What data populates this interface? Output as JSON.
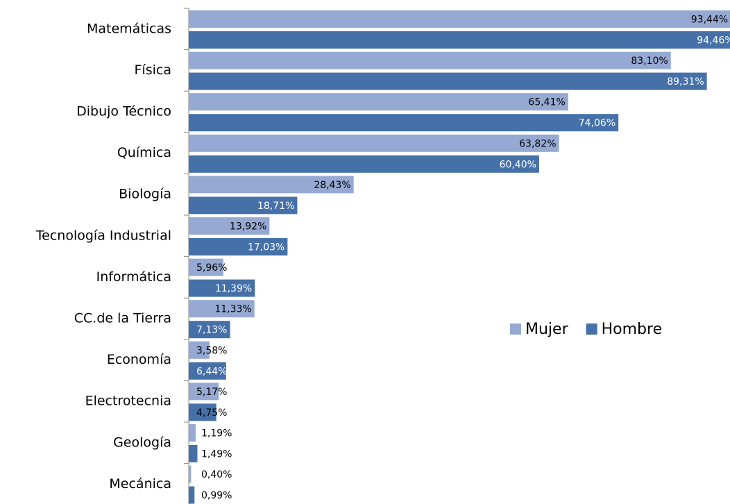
{
  "chart_data": {
    "type": "bar",
    "orientation": "horizontal",
    "categories": [
      "Matemáticas",
      "Física",
      "Dibujo Técnico",
      "Química",
      "Biología",
      "Tecnología Industrial",
      "Informática",
      "CC.de la Tierra",
      "Economía",
      "Electrotecnia",
      "Geología",
      "Mecánica"
    ],
    "series": [
      {
        "name": "Mujer",
        "color": "#95a9d3",
        "values": [
          93.44,
          83.1,
          65.41,
          63.82,
          28.43,
          13.92,
          5.96,
          11.33,
          3.58,
          5.17,
          1.19,
          0.4
        ],
        "value_labels": [
          "93,44%",
          "83,10%",
          "65,41%",
          "63,82%",
          "28,43%",
          "13,92%",
          "5,96%",
          "11,33%",
          "3,58%",
          "5,17%",
          "1,19%",
          "0,40%"
        ]
      },
      {
        "name": "Hombre",
        "color": "#4571a8",
        "values": [
          94.46,
          89.31,
          74.06,
          60.4,
          18.71,
          17.03,
          11.39,
          7.13,
          6.44,
          4.75,
          1.49,
          0.99
        ],
        "value_labels": [
          "94,46%",
          "89,31%",
          "74,06%",
          "60,40%",
          "18,71%",
          "17,03%",
          "11,39%",
          "7,13%",
          "6,44%",
          "4,75%",
          "1,49%",
          "0,99%"
        ]
      }
    ],
    "legend": "right"
  }
}
